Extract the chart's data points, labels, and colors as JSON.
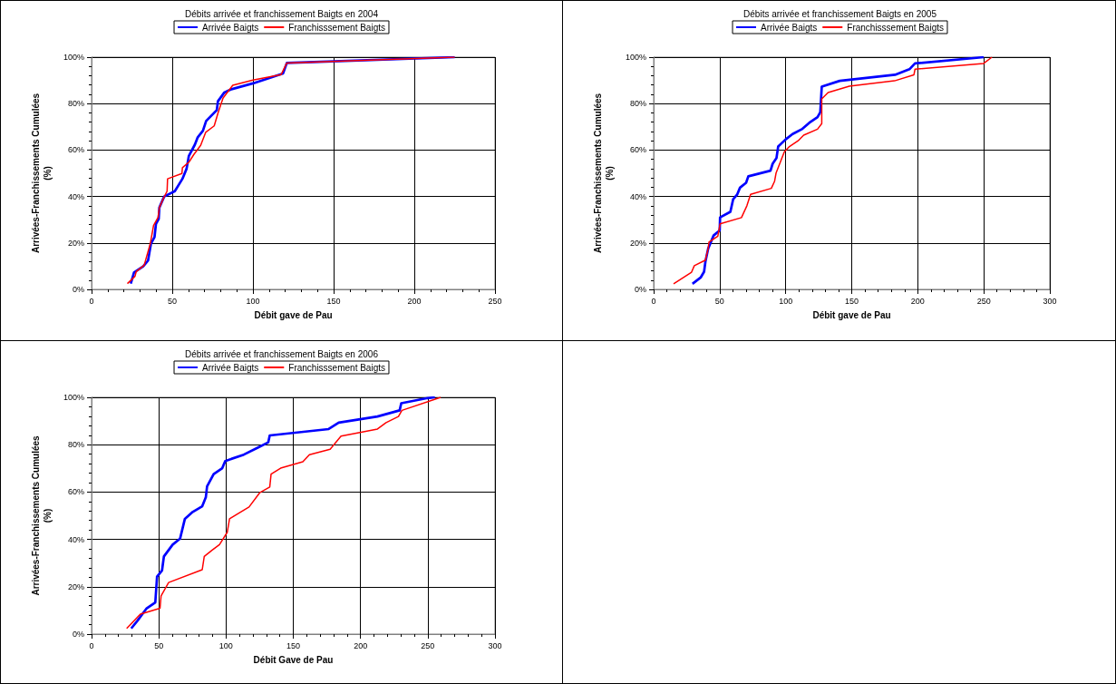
{
  "chart_data": [
    {
      "type": "line",
      "title": "Débits arrivée et franchissement Baigts en 2004",
      "xlabel": "Débit gave de Pau",
      "ylabel": "Arrivées-Franchissements Cumulées\n(%)",
      "legend": "top",
      "grid": true,
      "marker": "none",
      "line_style": "solid",
      "xlim": [
        0,
        250
      ],
      "xticks": [
        0,
        50,
        100,
        150,
        200,
        250
      ],
      "ylim": [
        0,
        100
      ],
      "yticks": [
        {
          "value": 0,
          "label": "0%"
        },
        {
          "value": 20,
          "label": "20%"
        },
        {
          "value": 40,
          "label": "40%"
        },
        {
          "value": 60,
          "label": "60%"
        },
        {
          "value": 80,
          "label": "80%"
        },
        {
          "value": 100,
          "label": "100%"
        }
      ],
      "series": [
        {
          "name": "Arrivée Baigts",
          "color": "#0000ff",
          "x": [
            24.3,
            26.3,
            32,
            35,
            36.8,
            39,
            39.9,
            41.6,
            42,
            45,
            51.6,
            56.3,
            58.9,
            60.3,
            64,
            65.8,
            69,
            71,
            77.6,
            78.3,
            82.3,
            86.7,
            100,
            118.7,
            121,
            225
          ],
          "values": [
            2.5,
            7.3,
            9.9,
            12.4,
            19.7,
            22.5,
            28.2,
            30.3,
            35.2,
            40,
            42.3,
            47.6,
            52,
            57.5,
            62.3,
            65.5,
            68.3,
            72.5,
            77.2,
            81,
            84.8,
            86.2,
            88.7,
            93,
            97.5,
            100
          ]
        },
        {
          "name": "Franchisssement Baigts",
          "color": "#ff0000",
          "x": [
            22.2,
            26.9,
            27.7,
            32.6,
            36.4,
            38.4,
            41.2,
            42,
            44.2,
            46.8,
            47.1,
            56,
            56.3,
            60.6,
            63.3,
            67.6,
            70.7,
            76,
            78.5,
            81.5,
            87.5,
            100,
            117.5,
            121,
            225
          ],
          "values": [
            2.5,
            5.6,
            7.7,
            10.4,
            19.7,
            27.5,
            31,
            35.2,
            38.7,
            42.3,
            47.6,
            49.9,
            52.4,
            55,
            58,
            62,
            67.6,
            70.4,
            76.3,
            82.4,
            87.9,
            90.1,
            92.5,
            97.5,
            100
          ]
        }
      ]
    },
    {
      "type": "line",
      "title": "Débits arrivée et franchissement Baigts en 2005",
      "xlabel": "Débit gave de Pau",
      "ylabel": "Arrivées-Franchissements Cumulées\n(%)",
      "legend": "top",
      "grid": true,
      "marker": "none",
      "line_style": "solid",
      "xlim": [
        0,
        300
      ],
      "xticks": [
        0,
        50,
        100,
        150,
        200,
        250,
        300
      ],
      "ylim": [
        0,
        100
      ],
      "yticks": [
        {
          "value": 0,
          "label": "0%"
        },
        {
          "value": 20,
          "label": "20%"
        },
        {
          "value": 40,
          "label": "40%"
        },
        {
          "value": 60,
          "label": "60%"
        },
        {
          "value": 80,
          "label": "80%"
        },
        {
          "value": 100,
          "label": "100%"
        }
      ],
      "series": [
        {
          "name": "Arrivée Baigts",
          "color": "#0000ff",
          "x": [
            29.4,
            35.6,
            38.2,
            39.2,
            41.3,
            45.4,
            50,
            50.3,
            58.1,
            60.2,
            63.3,
            65.4,
            70,
            71.7,
            88.5,
            90.1,
            93,
            94.3,
            100,
            105.2,
            112.6,
            117.8,
            124.1,
            126.2,
            127.3,
            140.9,
            182.8,
            193.7,
            197.9,
            250
          ],
          "values": [
            2.4,
            5.1,
            7.6,
            11.9,
            17.6,
            23.2,
            25.4,
            31,
            33.4,
            38.8,
            40.9,
            43.8,
            45.9,
            48.7,
            51.1,
            54.1,
            56.5,
            61.5,
            64.6,
            66.9,
            69.1,
            71.7,
            74.2,
            76.3,
            87.3,
            89.8,
            92.4,
            94.8,
            97.3,
            100
          ]
        },
        {
          "name": "Franchisssement Baigts",
          "color": "#ff0000",
          "x": [
            15.1,
            28.7,
            30.8,
            39.2,
            41.3,
            41.9,
            48.6,
            50.3,
            66.5,
            70.6,
            73.4,
            89.1,
            91.6,
            92.7,
            99,
            102.8,
            109.4,
            113.6,
            124.1,
            127.3,
            127.3,
            132.1,
            148.2,
            182.4,
            197.1,
            197.9,
            249.9,
            256.2
          ],
          "values": [
            2.4,
            7.4,
            10.2,
            12.6,
            17.6,
            20.4,
            22.9,
            28.2,
            30.9,
            36,
            40.9,
            43.5,
            46.6,
            50.1,
            59.3,
            61.5,
            64,
            66.4,
            69,
            71.4,
            82,
            84.8,
            87.5,
            89.8,
            92.4,
            94.8,
            97.3,
            100
          ]
        }
      ]
    },
    {
      "type": "line",
      "title": "Débits arrivée et franchissement Baigts en 2006",
      "xlabel": "Débit Gave de Pau",
      "ylabel": "Arrivées-Franchissements Cumulées\n(%)",
      "legend": "top",
      "grid": true,
      "marker": "none",
      "line_style": "solid",
      "xlim": [
        0,
        300
      ],
      "xticks": [
        0,
        50,
        100,
        150,
        200,
        250,
        300
      ],
      "ylim": [
        0,
        100
      ],
      "yticks": [
        {
          "value": 0,
          "label": "0%"
        },
        {
          "value": 20,
          "label": "20%"
        },
        {
          "value": 40,
          "label": "40%"
        },
        {
          "value": 60,
          "label": "60%"
        },
        {
          "value": 80,
          "label": "80%"
        },
        {
          "value": 100,
          "label": "100%"
        }
      ],
      "series": [
        {
          "name": "Arrivée Baigts",
          "color": "#0000ff",
          "x": [
            29.5,
            34.2,
            41,
            47.4,
            48.7,
            52.4,
            53.8,
            60.3,
            65.8,
            69.4,
            75.2,
            82.3,
            85,
            85.9,
            90.8,
            97.2,
            99.4,
            113.2,
            123.9,
            131.4,
            132.5,
            176.3,
            183.8,
            212.6,
            229.1,
            230.3,
            250,
            255.3
          ],
          "values": [
            2.4,
            5.7,
            10.9,
            13.4,
            24.3,
            26.9,
            32.8,
            37.8,
            40.3,
            48.7,
            51.6,
            54,
            57.9,
            62.4,
            67.6,
            70.1,
            73.1,
            75.8,
            78.8,
            81,
            83.9,
            86.6,
            89.3,
            91.9,
            94.5,
            97.5,
            99.7,
            100
          ]
        },
        {
          "name": "Franchisssement Baigts",
          "color": "#ff0000",
          "x": [
            26.1,
            36.3,
            50.9,
            51.7,
            57.3,
            82.3,
            83.8,
            89.7,
            95.1,
            100.9,
            102.6,
            117.1,
            125,
            132.5,
            133.5,
            140.6,
            157.1,
            162,
            177.4,
            185.5,
            212.6,
            219,
            228.2,
            230.8,
            259.6
          ],
          "values": [
            2.4,
            8.4,
            10.9,
            16.1,
            21.8,
            27.2,
            32.8,
            35.5,
            37.8,
            43,
            48.7,
            53.7,
            59.7,
            62.1,
            67.6,
            70.1,
            72.8,
            75.8,
            78.1,
            83.6,
            86.6,
            89.3,
            91.9,
            94.5,
            100
          ]
        }
      ]
    }
  ]
}
